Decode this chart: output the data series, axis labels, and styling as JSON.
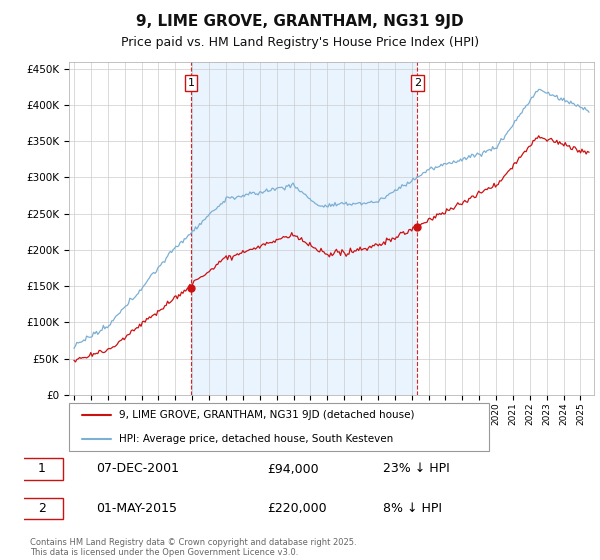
{
  "title": "9, LIME GROVE, GRANTHAM, NG31 9JD",
  "subtitle": "Price paid vs. HM Land Registry's House Price Index (HPI)",
  "ylim": [
    0,
    460000
  ],
  "yticks": [
    0,
    50000,
    100000,
    150000,
    200000,
    250000,
    300000,
    350000,
    400000,
    450000
  ],
  "ytick_labels": [
    "£0",
    "£50K",
    "£100K",
    "£150K",
    "£200K",
    "£250K",
    "£300K",
    "£350K",
    "£400K",
    "£450K"
  ],
  "hpi_color": "#7bafd4",
  "price_color": "#cc1111",
  "vline_color": "#cc1111",
  "shade_color": "#ddeeff",
  "purchase1_year": 2001.92,
  "purchase1_price": 94000,
  "purchase2_year": 2015.33,
  "purchase2_price": 220000,
  "purchase1_date": "07-DEC-2001",
  "purchase2_date": "01-MAY-2015",
  "purchase1_hpi_diff": "23% ↓ HPI",
  "purchase2_hpi_diff": "8% ↓ HPI",
  "legend_price_label": "9, LIME GROVE, GRANTHAM, NG31 9JD (detached house)",
  "legend_hpi_label": "HPI: Average price, detached house, South Kesteven",
  "footer": "Contains HM Land Registry data © Crown copyright and database right 2025.\nThis data is licensed under the Open Government Licence v3.0.",
  "title_fontsize": 11,
  "subtitle_fontsize": 9,
  "bg_color": "#ffffff",
  "grid_color": "#cccccc",
  "xlim_start": 1994.7,
  "xlim_end": 2025.8
}
